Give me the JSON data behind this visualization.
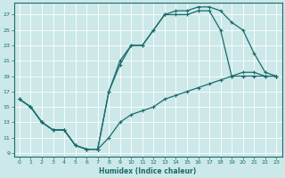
{
  "xlabel": "Humidex (Indice chaleur)",
  "bg_color": "#cce8e8",
  "line_color": "#1a6b6b",
  "grid_color": "#b0d8d8",
  "xlim": [
    -0.5,
    23.5
  ],
  "ylim": [
    8.5,
    28.5
  ],
  "xticks": [
    0,
    1,
    2,
    3,
    4,
    5,
    6,
    7,
    8,
    9,
    10,
    11,
    12,
    13,
    14,
    15,
    16,
    17,
    18,
    19,
    20,
    21,
    22,
    23
  ],
  "yticks": [
    9,
    11,
    13,
    15,
    17,
    19,
    21,
    23,
    25,
    27
  ],
  "line_upper_x": [
    0,
    1,
    2,
    3,
    4,
    5,
    6,
    7,
    8,
    9,
    10,
    11,
    12,
    13,
    14,
    15,
    16,
    17,
    18,
    19,
    20,
    21,
    22,
    23
  ],
  "line_upper_y": [
    16,
    15,
    13,
    12,
    12,
    10,
    9.5,
    9.5,
    17,
    21,
    23,
    23,
    25,
    27,
    27.5,
    27.5,
    28,
    28,
    27.5,
    26,
    25,
    22,
    19.5,
    19
  ],
  "line_mid_x": [
    0,
    1,
    2,
    3,
    4,
    5,
    6,
    7,
    8,
    9,
    10,
    11,
    12,
    13,
    14,
    15,
    16,
    17,
    18,
    19,
    20,
    21,
    22,
    23
  ],
  "line_mid_y": [
    16,
    15,
    13,
    12,
    12,
    10,
    9.5,
    9.5,
    17,
    20.5,
    23,
    23,
    25,
    27,
    27,
    27,
    27.5,
    27.5,
    25,
    19,
    19,
    19,
    19,
    19
  ],
  "line_diag_x": [
    0,
    1,
    2,
    3,
    4,
    5,
    6,
    7,
    8,
    9,
    10,
    11,
    12,
    13,
    14,
    15,
    16,
    17,
    18,
    19,
    20,
    21,
    22,
    23
  ],
  "line_diag_y": [
    16,
    15,
    13,
    12,
    12,
    10,
    9.5,
    9.5,
    11,
    13,
    14,
    14.5,
    15,
    16,
    16.5,
    17,
    17.5,
    18,
    18.5,
    19,
    19.5,
    19.5,
    19,
    19
  ]
}
